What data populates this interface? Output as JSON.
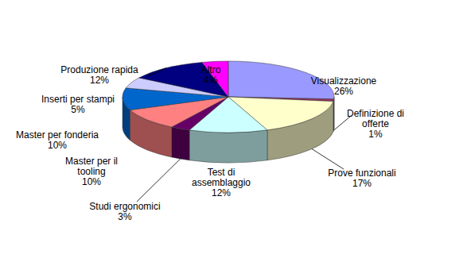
{
  "chart_data": {
    "type": "pie",
    "categories": [
      "Visualizzazione",
      "Definizione di offerte",
      "Prove funzionali",
      "Test di assemblaggio",
      "Studi ergonomici",
      "Master per il tooling",
      "Master per fonderia",
      "Inserti per stampi",
      "Produzione rapida",
      "Altro"
    ],
    "values": [
      26,
      1,
      17,
      12,
      3,
      10,
      10,
      5,
      12,
      4
    ],
    "value_labels": [
      "26%",
      "1%",
      "17%",
      "12%",
      "3%",
      "10%",
      "10%",
      "5%",
      "12%",
      "4%"
    ],
    "colors": [
      "#9999ff",
      "#993366",
      "#ffffcc",
      "#ccffff",
      "#660066",
      "#ff8080",
      "#0066cc",
      "#ccccff",
      "#000080",
      "#ff00ff"
    ],
    "data_labels": true
  }
}
